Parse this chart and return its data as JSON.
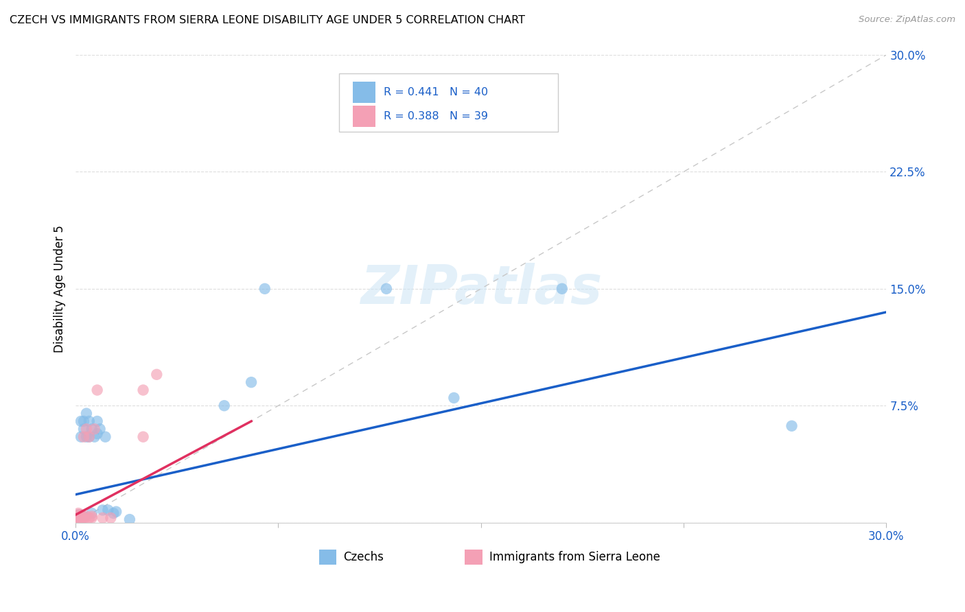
{
  "title": "CZECH VS IMMIGRANTS FROM SIERRA LEONE DISABILITY AGE UNDER 5 CORRELATION CHART",
  "source": "Source: ZipAtlas.com",
  "ylabel": "Disability Age Under 5",
  "xmin": 0.0,
  "xmax": 0.3,
  "ymin": 0.0,
  "ymax": 0.3,
  "grid_ticks": [
    0.0,
    0.075,
    0.15,
    0.225,
    0.3
  ],
  "legend_label1": "Czechs",
  "legend_label2": "Immigrants from Sierra Leone",
  "R1": 0.441,
  "N1": 40,
  "R2": 0.388,
  "N2": 39,
  "czech_color": "#85bce8",
  "sierra_color": "#f4a0b5",
  "czech_line_color": "#1a5fc8",
  "sierra_line_color": "#e03060",
  "diagonal_color": "#c8c8c8",
  "czech_x": [
    0.0005,
    0.0005,
    0.0005,
    0.001,
    0.001,
    0.001,
    0.001,
    0.001,
    0.0015,
    0.0015,
    0.002,
    0.002,
    0.002,
    0.002,
    0.003,
    0.003,
    0.003,
    0.004,
    0.004,
    0.005,
    0.005,
    0.006,
    0.006,
    0.007,
    0.008,
    0.008,
    0.009,
    0.01,
    0.011,
    0.012,
    0.014,
    0.015,
    0.02,
    0.055,
    0.065,
    0.07,
    0.115,
    0.14,
    0.18,
    0.265
  ],
  "czech_y": [
    0.002,
    0.003,
    0.004,
    0.001,
    0.002,
    0.003,
    0.004,
    0.005,
    0.003,
    0.005,
    0.002,
    0.003,
    0.055,
    0.065,
    0.004,
    0.06,
    0.065,
    0.055,
    0.07,
    0.055,
    0.065,
    0.006,
    0.06,
    0.055,
    0.057,
    0.065,
    0.06,
    0.008,
    0.055,
    0.008,
    0.006,
    0.007,
    0.002,
    0.075,
    0.09,
    0.15,
    0.15,
    0.08,
    0.15,
    0.062
  ],
  "sierra_x": [
    0.0003,
    0.0003,
    0.0003,
    0.0003,
    0.0005,
    0.0005,
    0.0005,
    0.0005,
    0.0008,
    0.0008,
    0.001,
    0.001,
    0.001,
    0.001,
    0.001,
    0.001,
    0.0015,
    0.0015,
    0.002,
    0.002,
    0.002,
    0.002,
    0.002,
    0.003,
    0.003,
    0.003,
    0.004,
    0.004,
    0.005,
    0.005,
    0.006,
    0.006,
    0.007,
    0.008,
    0.01,
    0.013,
    0.025,
    0.025,
    0.03
  ],
  "sierra_y": [
    0.001,
    0.002,
    0.003,
    0.004,
    0.001,
    0.002,
    0.003,
    0.004,
    0.002,
    0.003,
    0.001,
    0.002,
    0.003,
    0.004,
    0.005,
    0.006,
    0.002,
    0.003,
    0.001,
    0.002,
    0.003,
    0.004,
    0.005,
    0.002,
    0.003,
    0.055,
    0.004,
    0.06,
    0.003,
    0.055,
    0.003,
    0.004,
    0.06,
    0.085,
    0.003,
    0.003,
    0.085,
    0.055,
    0.095
  ],
  "background_color": "#ffffff",
  "watermark_text": "ZIPatlas",
  "marker_size": 140
}
